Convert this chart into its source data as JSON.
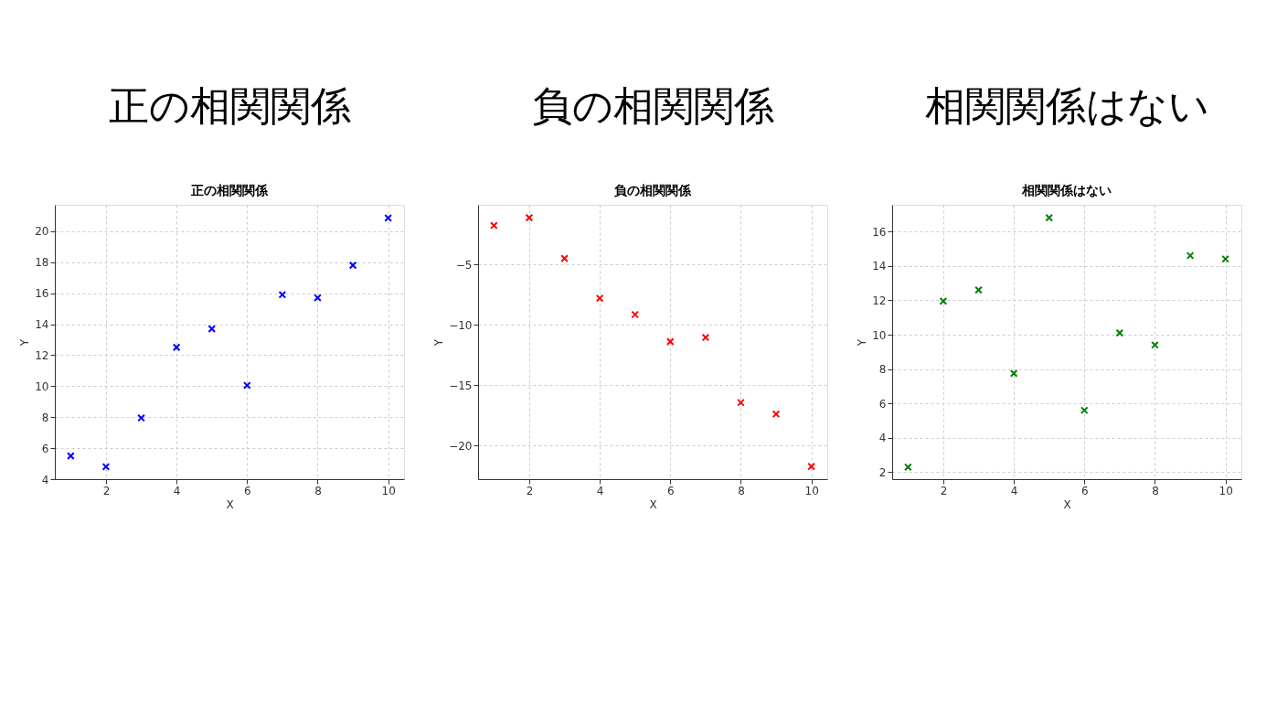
{
  "chart_data": [
    {
      "type": "scatter",
      "title": "正の相関関係",
      "annotations": [
        "正の相関関係"
      ],
      "xlabel": "X",
      "ylabel": "Y",
      "x": [
        1,
        2,
        3,
        4,
        5,
        6,
        7,
        8,
        9,
        10
      ],
      "series": [
        {
          "color": "#0000ff",
          "values": [
            5.5,
            4.8,
            7.95,
            12.5,
            13.7,
            10.05,
            15.9,
            15.7,
            17.8,
            20.85
          ]
        }
      ],
      "xlim": [
        0.55,
        10.45
      ],
      "ylim": [
        4,
        21.7
      ],
      "xticks": [
        2,
        4,
        6,
        8,
        10
      ],
      "yticks": [
        4,
        6,
        8,
        10,
        12,
        14,
        16,
        18,
        20
      ],
      "grid": true,
      "marker": "cross"
    },
    {
      "type": "scatter",
      "title": "負の相関関係",
      "annotations": [
        "負の相関関係"
      ],
      "xlabel": "X",
      "ylabel": "Y",
      "x": [
        1,
        2,
        3,
        4,
        5,
        6,
        7,
        8,
        9,
        10
      ],
      "series": [
        {
          "color": "#ff0000",
          "values": [
            -1.76,
            -1.12,
            -4.5,
            -7.8,
            -9.15,
            -11.4,
            -11.05,
            -16.45,
            -17.4,
            -21.75
          ]
        }
      ],
      "xlim": [
        0.55,
        10.45
      ],
      "ylim": [
        -22.8,
        -0.05
      ],
      "xticks": [
        2,
        4,
        6,
        8,
        10
      ],
      "yticks": [
        -20,
        -15,
        -10,
        -5
      ],
      "grid": true,
      "marker": "cross"
    },
    {
      "type": "scatter",
      "title": "相関関係はない",
      "annotations": [
        "相関関係はない"
      ],
      "xlabel": "X",
      "ylabel": "Y",
      "x": [
        1,
        2,
        3,
        4,
        5,
        6,
        7,
        8,
        9,
        10
      ],
      "series": [
        {
          "color": "#008000",
          "values": [
            2.3,
            11.95,
            12.6,
            7.75,
            16.8,
            5.6,
            10.1,
            9.4,
            14.6,
            14.4
          ]
        }
      ],
      "xlim": [
        0.55,
        10.45
      ],
      "ylim": [
        1.6,
        17.55
      ],
      "xticks": [
        2,
        4,
        6,
        8,
        10
      ],
      "yticks": [
        2,
        4,
        6,
        8,
        10,
        12,
        14,
        16
      ],
      "grid": true,
      "marker": "cross"
    }
  ]
}
